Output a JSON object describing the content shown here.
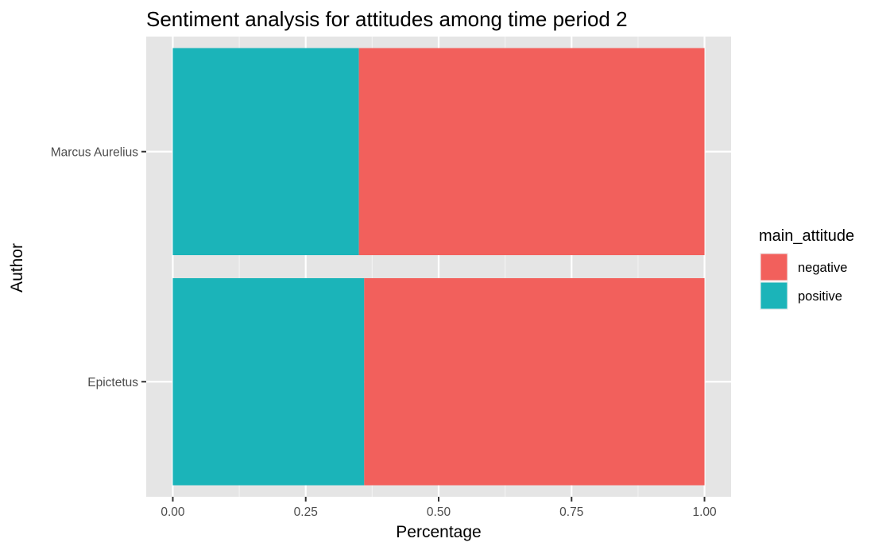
{
  "chart_data": {
    "type": "bar",
    "orientation": "horizontal",
    "stacked": true,
    "title": "Sentiment analysis for attitudes among time period 2",
    "xlabel": "Percentage",
    "ylabel": "Author",
    "categories": [
      "Marcus Aurelius",
      "Epictetus"
    ],
    "series": [
      {
        "name": "positive",
        "values": [
          0.35,
          0.36
        ],
        "color": "#1BB4B9"
      },
      {
        "name": "negative",
        "values": [
          0.65,
          0.64
        ],
        "color": "#F2605C"
      }
    ],
    "xlim": [
      -0.05,
      1.05
    ],
    "xticks": [
      "0.00",
      "0.25",
      "0.50",
      "0.75",
      "1.00"
    ],
    "grid": true,
    "panel_background": "#E5E5E5",
    "legend": {
      "title": "main_attitude",
      "position": "right",
      "entries": [
        {
          "label": "negative",
          "color": "#F2605C"
        },
        {
          "label": "positive",
          "color": "#1BB4B9"
        }
      ]
    }
  }
}
